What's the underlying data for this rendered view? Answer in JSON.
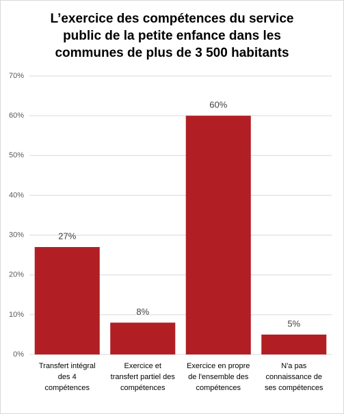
{
  "chart_data": {
    "type": "bar",
    "title": "L’exercice des compétences du service public de la petite enfance dans les communes de plus de 3 500 habitants",
    "categories": [
      "Transfert intégral des 4 compétences",
      "Exercice et transfert partiel des compétences",
      "Exercice en propre de l'ensemble des compétences",
      "N'a pas connaissance de ses compétences"
    ],
    "values": [
      27,
      8,
      60,
      5
    ],
    "value_labels": [
      "27%",
      "8%",
      "60%",
      "5%"
    ],
    "color": "#b11f24",
    "ylim": [
      0,
      70
    ],
    "yticks": [
      {
        "value": 0,
        "label": "0%"
      },
      {
        "value": 10,
        "label": "10%"
      },
      {
        "value": 20,
        "label": "20%"
      },
      {
        "value": 30,
        "label": "30%"
      },
      {
        "value": 40,
        "label": "40%"
      },
      {
        "value": 50,
        "label": "50%"
      },
      {
        "value": 60,
        "label": "60%"
      },
      {
        "value": 70,
        "label": "70%"
      }
    ],
    "grid": true
  }
}
